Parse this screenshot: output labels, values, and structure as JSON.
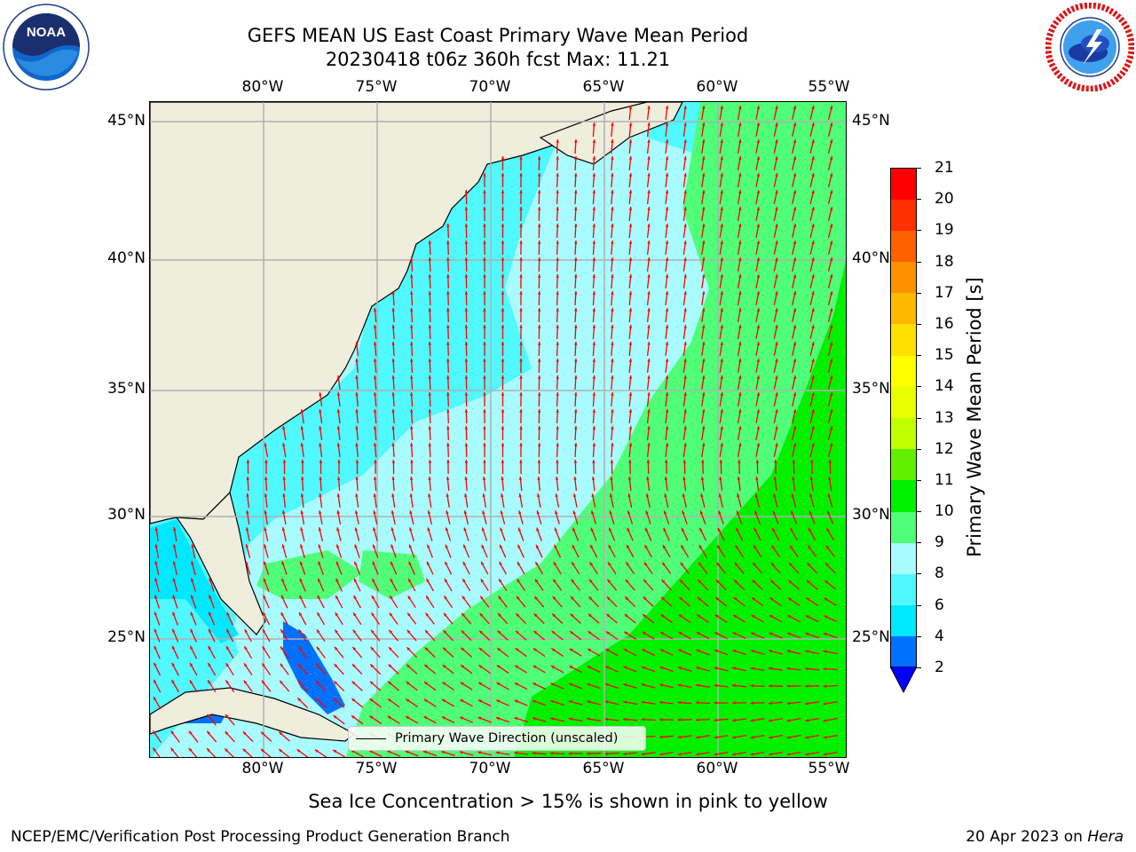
{
  "title": {
    "line1": "GEFS MEAN US East Coast Primary Wave Mean Period",
    "line2": "20230418 t06z 360h fcst   Max: 11.21"
  },
  "map": {
    "lon_labels": [
      "80°W",
      "75°W",
      "70°W",
      "65°W",
      "60°W",
      "55°W"
    ],
    "lat_labels": [
      "45°N",
      "40°N",
      "35°N",
      "30°N",
      "25°N"
    ],
    "extent": {
      "lon": [
        -85,
        -54
      ],
      "lat": [
        20.5,
        46
      ]
    },
    "legend": "Primary Wave Direction (unscaled)",
    "arrow_color": "#ff0000",
    "land_color": "#efeddc",
    "grid_color": "#b0b0b0"
  },
  "colorbar": {
    "label": "Primary Wave Mean Period [s]",
    "ticks": [
      "2",
      "4",
      "6",
      "8",
      "9",
      "10",
      "11",
      "12",
      "13",
      "14",
      "15",
      "16",
      "17",
      "18",
      "19",
      "20",
      "21"
    ],
    "colors": [
      "#0070ff",
      "#00e8ff",
      "#50f8ff",
      "#a8fcff",
      "#50ff78",
      "#00f000",
      "#60f000",
      "#c0ff00",
      "#e8ff00",
      "#ffff00",
      "#ffe000",
      "#ffb800",
      "#ff9000",
      "#ff6000",
      "#ff3000",
      "#ff0000"
    ],
    "extend_color": "#0000ff"
  },
  "note": "Sea Ice Concentration > 15% is shown in pink to yellow",
  "footer": {
    "left": "NCEP/EMC/Verification Post Processing Product Generation Branch",
    "date": "20 Apr 2023 on ",
    "host": "Hera"
  },
  "logos": {
    "noaa_text": "NOAA",
    "noaa_ring": "NATIONAL OCEANIC AND ATMOSPHERIC ADMINISTRATION · U.S. DEPARTMENT OF COMMERCE",
    "nws_ring": "NATIONAL WEATHER SERVICE"
  }
}
